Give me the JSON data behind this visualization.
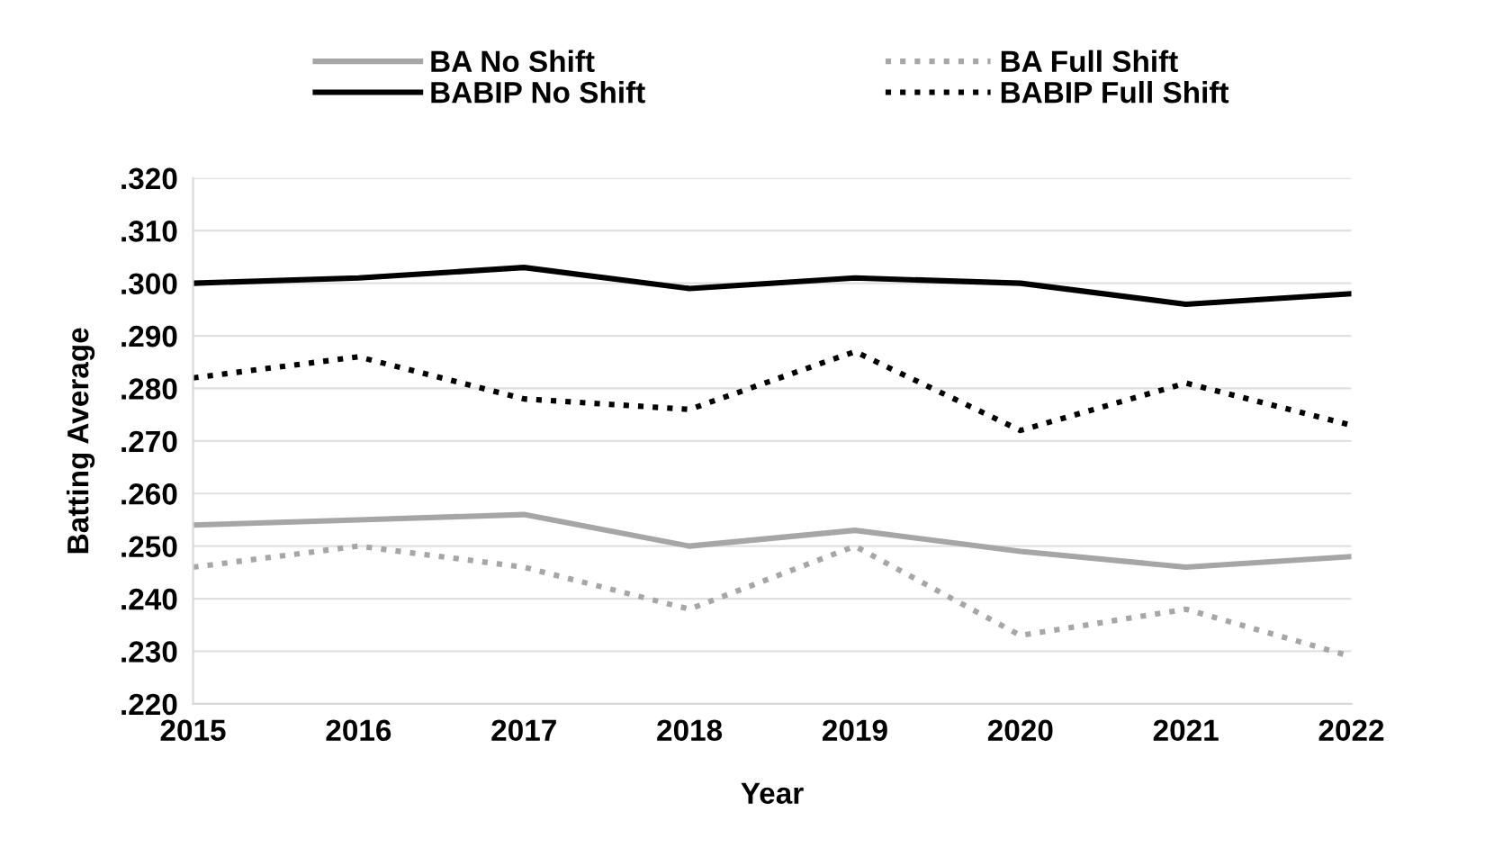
{
  "chart_data": {
    "type": "line",
    "xlabel": "Year",
    "ylabel": "Batting Average",
    "x": [
      2015,
      2016,
      2017,
      2018,
      2019,
      2020,
      2021,
      2022
    ],
    "series": [
      {
        "name": "BA No Shift",
        "color": "#a6a6a6",
        "line_style": "solid",
        "values": [
          0.254,
          0.255,
          0.256,
          0.25,
          0.253,
          0.249,
          0.246,
          0.248
        ]
      },
      {
        "name": "BABIP No Shift",
        "color": "#000000",
        "line_style": "solid",
        "values": [
          0.3,
          0.301,
          0.303,
          0.299,
          0.301,
          0.3,
          0.296,
          0.298
        ]
      },
      {
        "name": "BA Full Shift",
        "color": "#a6a6a6",
        "line_style": "dotted",
        "values": [
          0.246,
          0.25,
          0.246,
          0.238,
          0.25,
          0.233,
          0.238,
          0.229
        ]
      },
      {
        "name": "BABIP Full Shift",
        "color": "#000000",
        "line_style": "dotted",
        "values": [
          0.282,
          0.286,
          0.278,
          0.276,
          0.287,
          0.272,
          0.281,
          0.273
        ]
      }
    ],
    "xlim": [
      2015,
      2022
    ],
    "xticks": [
      2015,
      2016,
      2017,
      2018,
      2019,
      2020,
      2021,
      2022
    ],
    "ylim": [
      0.22,
      0.32
    ],
    "yticks": [
      {
        "value": 0.22,
        "label": ".220"
      },
      {
        "value": 0.23,
        "label": ".230"
      },
      {
        "value": 0.24,
        "label": ".240"
      },
      {
        "value": 0.25,
        "label": ".250"
      },
      {
        "value": 0.26,
        "label": ".260"
      },
      {
        "value": 0.27,
        "label": ".270"
      },
      {
        "value": 0.28,
        "label": ".280"
      },
      {
        "value": 0.29,
        "label": ".290"
      },
      {
        "value": 0.3,
        "label": ".300"
      },
      {
        "value": 0.31,
        "label": ".310"
      },
      {
        "value": 0.32,
        "label": ".320"
      }
    ],
    "grid": "y",
    "legend": "top",
    "marker": "none"
  }
}
